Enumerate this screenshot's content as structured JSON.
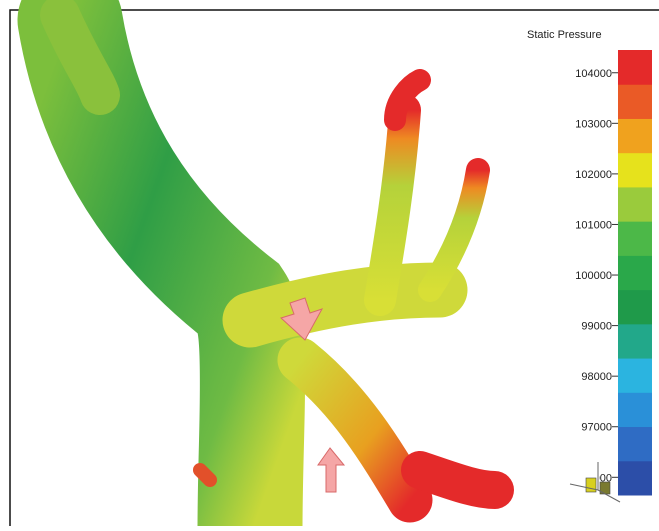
{
  "colorbar": {
    "title": "Static Pressure",
    "range": [
      95650,
      104450
    ],
    "ticks": [
      96000,
      97000,
      98000,
      99000,
      100000,
      101000,
      102000,
      103000,
      104000
    ],
    "colors": [
      "#2c4ea8",
      "#2f6cc4",
      "#2a90d8",
      "#2bb4e0",
      "#22a88a",
      "#1f9a4a",
      "#2aa84a",
      "#4cb848",
      "#9acb3c",
      "#e6e21c",
      "#f0a21e",
      "#ea5a26",
      "#e42a2a"
    ]
  }
}
